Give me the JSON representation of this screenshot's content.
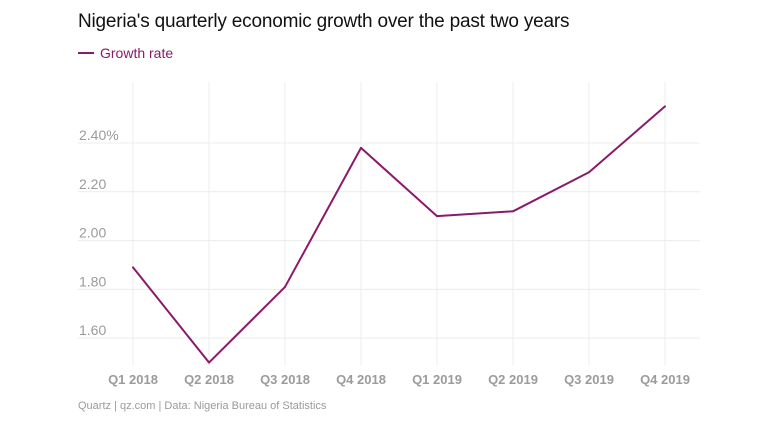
{
  "chart_data": {
    "type": "line",
    "title": "Nigeria's quarterly economic growth over the past two years",
    "categories": [
      "Q1 2018",
      "Q2 2018",
      "Q3 2018",
      "Q4 2018",
      "Q1 2019",
      "Q2 2019",
      "Q3 2019",
      "Q4 2019"
    ],
    "series": [
      {
        "name": "Growth rate",
        "values": [
          1.89,
          1.5,
          1.81,
          2.38,
          2.1,
          2.12,
          2.28,
          2.55
        ],
        "color": "#8b1a6b"
      }
    ],
    "y_ticks": [
      1.6,
      1.8,
      2.0,
      2.2,
      2.4
    ],
    "y_tick_labels": [
      "1.60",
      "1.80",
      "2.00",
      "2.20",
      "2.40%"
    ],
    "ylim": [
      1.49,
      2.65
    ],
    "grid": true,
    "legend_position": "top-left",
    "source": "Quartz | qz.com | Data: Nigeria Bureau of Statistics"
  }
}
